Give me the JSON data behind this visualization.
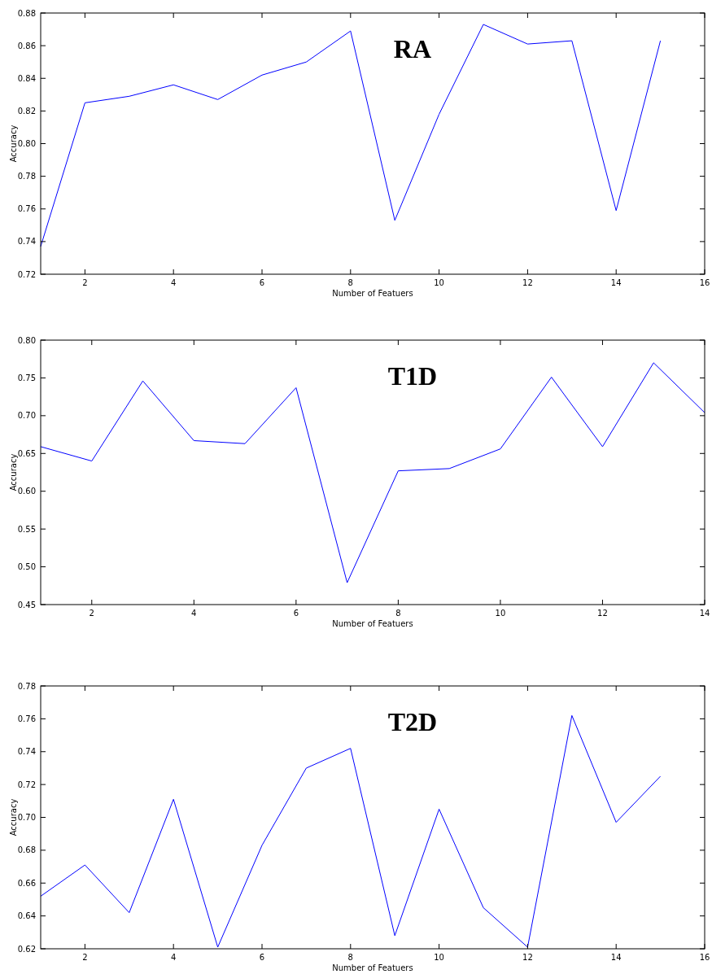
{
  "chart_data": [
    {
      "type": "line",
      "title": "RA",
      "xlabel": "Number of Featuers",
      "ylabel": "Accuracy",
      "x": [
        1,
        2,
        3,
        4,
        5,
        6,
        7,
        8,
        9,
        10,
        11,
        12,
        13,
        14,
        15
      ],
      "xlim": [
        1,
        16
      ],
      "xticks": [
        2,
        4,
        6,
        8,
        10,
        12,
        14,
        16
      ],
      "ylim": [
        0.72,
        0.88
      ],
      "yticks": [
        {
          "value": 0.72,
          "label": "0.72"
        },
        {
          "value": 0.74,
          "label": "0.74"
        },
        {
          "value": 0.76,
          "label": "0.76"
        },
        {
          "value": 0.78,
          "label": "0.78"
        },
        {
          "value": 0.8,
          "label": "0.80"
        },
        {
          "value": 0.82,
          "label": "0.82"
        },
        {
          "value": 0.84,
          "label": "0.84"
        },
        {
          "value": 0.86,
          "label": "0.86"
        },
        {
          "value": 0.88,
          "label": "0.88"
        }
      ],
      "grid": false,
      "series": [
        {
          "color": "#0000ff",
          "values": [
            0.737,
            0.825,
            0.829,
            0.836,
            0.827,
            0.842,
            0.85,
            0.869,
            0.753,
            0.818,
            0.873,
            0.861,
            0.863,
            0.759,
            0.863
          ]
        }
      ]
    },
    {
      "type": "line",
      "title": "T1D",
      "xlabel": "Number of Featuers",
      "ylabel": "Accuracy",
      "x": [
        1,
        2,
        3,
        4,
        5,
        6,
        7,
        8,
        9,
        10,
        11,
        12,
        13,
        14
      ],
      "xlim": [
        1,
        14
      ],
      "xticks": [
        2,
        4,
        6,
        8,
        10,
        12,
        14
      ],
      "ylim": [
        0.45,
        0.8
      ],
      "yticks": [
        {
          "value": 0.45,
          "label": "0.45"
        },
        {
          "value": 0.5,
          "label": "0.50"
        },
        {
          "value": 0.55,
          "label": "0.55"
        },
        {
          "value": 0.6,
          "label": "0.60"
        },
        {
          "value": 0.65,
          "label": "0.65"
        },
        {
          "value": 0.7,
          "label": "0.70"
        },
        {
          "value": 0.75,
          "label": "0.75"
        },
        {
          "value": 0.8,
          "label": "0.80"
        }
      ],
      "grid": false,
      "series": [
        {
          "color": "#0000ff",
          "values": [
            0.659,
            0.64,
            0.746,
            0.667,
            0.663,
            0.737,
            0.479,
            0.627,
            0.63,
            0.656,
            0.751,
            0.659,
            0.77,
            0.704
          ]
        }
      ]
    },
    {
      "type": "line",
      "title": "T2D",
      "xlabel": "Number of Featuers",
      "ylabel": "Accuracy",
      "x": [
        1,
        2,
        3,
        4,
        5,
        6,
        7,
        8,
        9,
        10,
        11,
        12,
        13,
        14,
        15
      ],
      "xlim": [
        1,
        16
      ],
      "xticks": [
        2,
        4,
        6,
        8,
        10,
        12,
        14,
        16
      ],
      "ylim": [
        0.62,
        0.78
      ],
      "yticks": [
        {
          "value": 0.62,
          "label": "0.62"
        },
        {
          "value": 0.64,
          "label": "0.64"
        },
        {
          "value": 0.66,
          "label": "0.66"
        },
        {
          "value": 0.68,
          "label": "0.68"
        },
        {
          "value": 0.7,
          "label": "0.70"
        },
        {
          "value": 0.72,
          "label": "0.72"
        },
        {
          "value": 0.74,
          "label": "0.74"
        },
        {
          "value": 0.76,
          "label": "0.76"
        },
        {
          "value": 0.78,
          "label": "0.78"
        }
      ],
      "grid": false,
      "series": [
        {
          "color": "#0000ff",
          "values": [
            0.652,
            0.671,
            0.642,
            0.711,
            0.621,
            0.683,
            0.73,
            0.742,
            0.628,
            0.705,
            0.645,
            0.621,
            0.762,
            0.697,
            0.725
          ]
        }
      ]
    }
  ]
}
